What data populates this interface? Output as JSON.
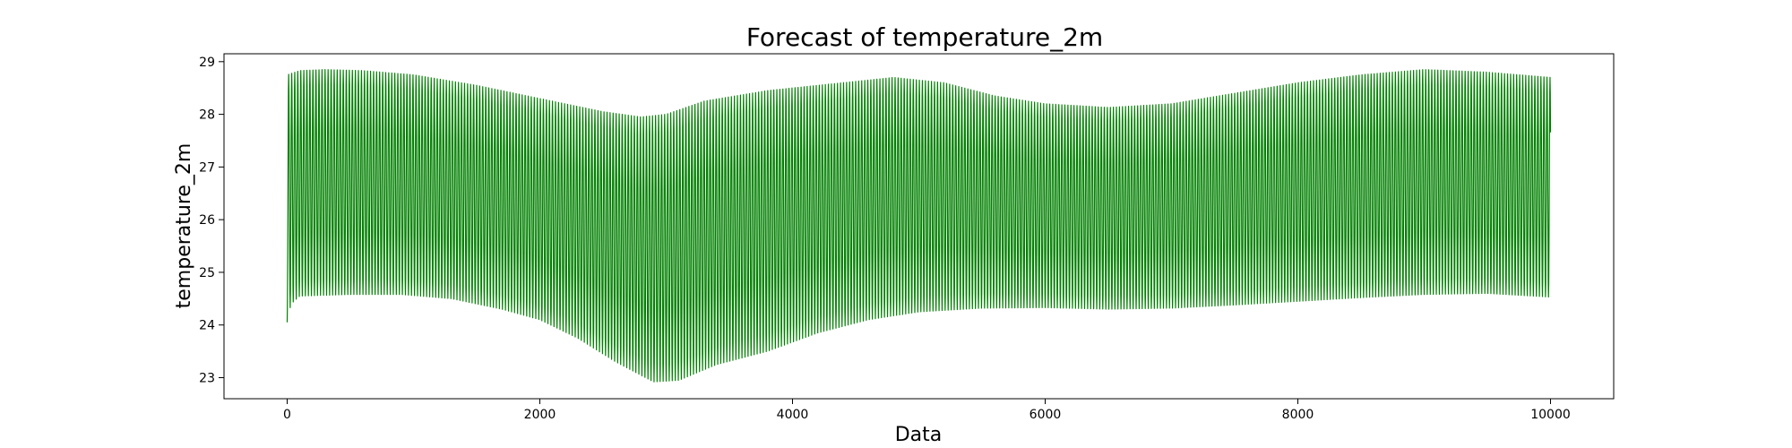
{
  "chart_data": {
    "type": "line",
    "title": "Forecast of temperature_2m",
    "xlabel": "Data",
    "ylabel": "temperature_2m",
    "xlim": [
      -500,
      10500
    ],
    "ylim": [
      22.6,
      29.15
    ],
    "xticks": [
      0,
      2000,
      4000,
      6000,
      8000,
      10000
    ],
    "yticks": [
      23,
      24,
      25,
      26,
      27,
      28,
      29
    ],
    "grid": false,
    "legend": "none",
    "series": [
      {
        "color": "#008000",
        "oscillation_period": 24,
        "x_range": [
          0,
          10000
        ],
        "upper_envelope": [
          [
            0,
            28.75
          ],
          [
            100,
            28.83
          ],
          [
            300,
            28.85
          ],
          [
            600,
            28.83
          ],
          [
            1000,
            28.75
          ],
          [
            1500,
            28.55
          ],
          [
            2000,
            28.3
          ],
          [
            2500,
            28.05
          ],
          [
            2800,
            27.95
          ],
          [
            3000,
            28.0
          ],
          [
            3300,
            28.25
          ],
          [
            3800,
            28.45
          ],
          [
            4200,
            28.55
          ],
          [
            4800,
            28.7
          ],
          [
            5200,
            28.6
          ],
          [
            5600,
            28.35
          ],
          [
            6000,
            28.2
          ],
          [
            6500,
            28.13
          ],
          [
            7000,
            28.2
          ],
          [
            7500,
            28.4
          ],
          [
            8000,
            28.6
          ],
          [
            8500,
            28.75
          ],
          [
            9000,
            28.85
          ],
          [
            9500,
            28.8
          ],
          [
            10000,
            28.7
          ]
        ],
        "lower_envelope": [
          [
            0,
            24.05
          ],
          [
            30,
            24.4
          ],
          [
            100,
            24.55
          ],
          [
            500,
            24.58
          ],
          [
            900,
            24.58
          ],
          [
            1300,
            24.5
          ],
          [
            1700,
            24.3
          ],
          [
            2000,
            24.1
          ],
          [
            2300,
            23.75
          ],
          [
            2600,
            23.3
          ],
          [
            2900,
            22.92
          ],
          [
            3100,
            22.95
          ],
          [
            3400,
            23.25
          ],
          [
            3800,
            23.5
          ],
          [
            4200,
            23.85
          ],
          [
            4600,
            24.1
          ],
          [
            5000,
            24.25
          ],
          [
            5500,
            24.32
          ],
          [
            6000,
            24.33
          ],
          [
            6500,
            24.3
          ],
          [
            7000,
            24.32
          ],
          [
            7500,
            24.38
          ],
          [
            8000,
            24.45
          ],
          [
            8500,
            24.52
          ],
          [
            9000,
            24.58
          ],
          [
            9500,
            24.6
          ],
          [
            10000,
            24.53
          ]
        ]
      }
    ]
  }
}
